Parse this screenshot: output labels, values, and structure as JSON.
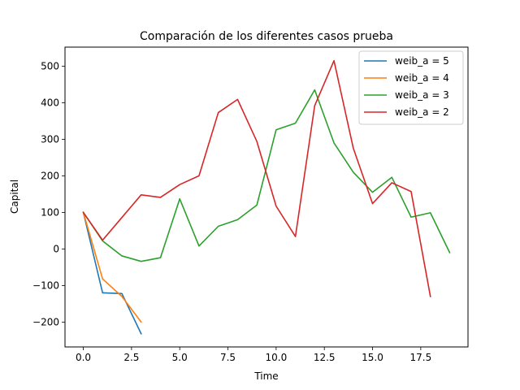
{
  "chart_data": {
    "type": "line",
    "title": "Comparación de los diferentes casos prueba",
    "xlabel": "Time",
    "ylabel": "Capital",
    "xlim": [
      -0.95,
      19.95
    ],
    "ylim": [
      -268,
      552
    ],
    "x_ticks": [
      0.0,
      2.5,
      5.0,
      7.5,
      10.0,
      12.5,
      15.0,
      17.5
    ],
    "x_tick_labels": [
      "0.0",
      "2.5",
      "5.0",
      "7.5",
      "10.0",
      "12.5",
      "15.0",
      "17.5"
    ],
    "y_ticks": [
      -200,
      -100,
      0,
      100,
      200,
      300,
      400,
      500
    ],
    "y_tick_labels": [
      "−200",
      "−100",
      "0",
      "100",
      "200",
      "300",
      "400",
      "500"
    ],
    "grid": false,
    "legend_position": "top-right",
    "series": [
      {
        "name": "weib_a = 5",
        "color": "#1f77b4",
        "x": [
          0,
          1,
          2,
          3
        ],
        "values": [
          100,
          -120,
          -122,
          -232
        ]
      },
      {
        "name": "weib_a = 4",
        "color": "#ff7f0e",
        "x": [
          0,
          1,
          2,
          3
        ],
        "values": [
          100,
          -82,
          -130,
          -200
        ]
      },
      {
        "name": "weib_a = 3",
        "color": "#2ca02c",
        "x": [
          0,
          1,
          2,
          3,
          4,
          5,
          6,
          7,
          8,
          9,
          10,
          11,
          12,
          13,
          14,
          15,
          16,
          17,
          18,
          19
        ],
        "values": [
          100,
          22,
          -19,
          -34,
          -24,
          137,
          8,
          62,
          80,
          120,
          326,
          344,
          435,
          290,
          210,
          155,
          196,
          87,
          99,
          -10
        ]
      },
      {
        "name": "weib_a = 2",
        "color": "#d62728",
        "x": [
          0,
          1,
          2,
          3,
          4,
          5,
          6,
          7,
          8,
          9,
          10,
          11,
          12,
          13,
          14,
          15,
          16,
          17,
          18
        ],
        "values": [
          100,
          24,
          86,
          148,
          141,
          176,
          200,
          373,
          409,
          294,
          117,
          34,
          392,
          515,
          276,
          124,
          181,
          157,
          -130
        ]
      }
    ]
  }
}
